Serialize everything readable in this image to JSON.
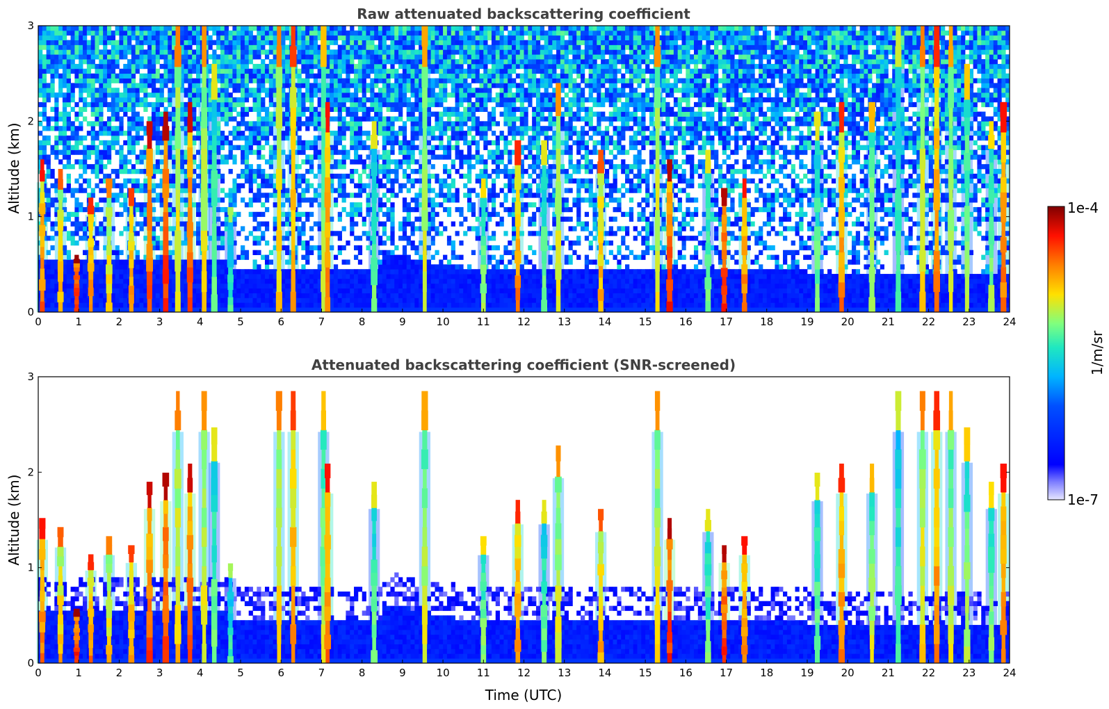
{
  "chart_data": {
    "type": "heatmap",
    "colormap": "jet",
    "colorbar": {
      "min_label": "1e-7",
      "max_label": "1e-4",
      "label": "1/m/sr",
      "range": [
        1e-07,
        0.0001
      ],
      "scale": "log",
      "low_color": "#e6e6ff",
      "high_color": "#7f0000"
    },
    "x_ticks": [
      "0",
      "1",
      "2",
      "3",
      "4",
      "5",
      "6",
      "7",
      "8",
      "9",
      "10",
      "11",
      "12",
      "13",
      "14",
      "15",
      "16",
      "17",
      "18",
      "19",
      "20",
      "21",
      "22",
      "23",
      "24"
    ],
    "y_ticks": [
      "0",
      "1",
      "2",
      "3"
    ],
    "xlabel": "Time (UTC)",
    "xlim": [
      0,
      24
    ],
    "ylim": [
      0,
      3
    ],
    "panels": [
      {
        "id": "raw",
        "title": "Raw attenuated backscattering coefficient",
        "ylabel": "Altitude (km)",
        "screened": false
      },
      {
        "id": "screened",
        "title": "Attenuated backscattering coefficient (SNR-screened)",
        "ylabel": "Altitude (km)",
        "screened": true
      }
    ],
    "plumes": [
      {
        "t": 0.1,
        "top": 1.6,
        "level": 0.82
      },
      {
        "t": 0.55,
        "top": 1.5,
        "level": 0.75
      },
      {
        "t": 0.95,
        "top": 0.6,
        "level": 0.9
      },
      {
        "t": 1.3,
        "top": 1.2,
        "level": 0.8
      },
      {
        "t": 1.75,
        "top": 1.4,
        "level": 0.72
      },
      {
        "t": 2.3,
        "top": 1.3,
        "level": 0.78
      },
      {
        "t": 2.75,
        "top": 2.0,
        "level": 0.86
      },
      {
        "t": 3.15,
        "top": 2.1,
        "level": 0.88
      },
      {
        "t": 3.45,
        "top": 3.0,
        "level": 0.72
      },
      {
        "t": 3.75,
        "top": 2.2,
        "level": 0.86
      },
      {
        "t": 4.1,
        "top": 3.0,
        "level": 0.7
      },
      {
        "t": 4.35,
        "top": 2.6,
        "level": 0.6
      },
      {
        "t": 4.75,
        "top": 1.1,
        "level": 0.55
      },
      {
        "t": 5.95,
        "top": 3.0,
        "level": 0.72
      },
      {
        "t": 6.3,
        "top": 3.0,
        "level": 0.78
      },
      {
        "t": 7.05,
        "top": 3.0,
        "level": 0.65
      },
      {
        "t": 7.15,
        "top": 2.2,
        "level": 0.82
      },
      {
        "t": 8.3,
        "top": 2.0,
        "level": 0.6
      },
      {
        "t": 9.55,
        "top": 3.0,
        "level": 0.68
      },
      {
        "t": 11.0,
        "top": 1.4,
        "level": 0.62
      },
      {
        "t": 11.85,
        "top": 1.8,
        "level": 0.8
      },
      {
        "t": 12.5,
        "top": 1.8,
        "level": 0.6
      },
      {
        "t": 12.85,
        "top": 2.4,
        "level": 0.7
      },
      {
        "t": 13.9,
        "top": 1.7,
        "level": 0.76
      },
      {
        "t": 15.3,
        "top": 3.0,
        "level": 0.7
      },
      {
        "t": 15.6,
        "top": 1.6,
        "level": 0.88
      },
      {
        "t": 16.55,
        "top": 1.7,
        "level": 0.6
      },
      {
        "t": 16.95,
        "top": 1.3,
        "level": 0.88
      },
      {
        "t": 17.45,
        "top": 1.4,
        "level": 0.82
      },
      {
        "t": 19.25,
        "top": 2.1,
        "level": 0.6
      },
      {
        "t": 19.85,
        "top": 2.2,
        "level": 0.8
      },
      {
        "t": 20.6,
        "top": 2.2,
        "level": 0.66
      },
      {
        "t": 21.25,
        "top": 3.0,
        "level": 0.58
      },
      {
        "t": 21.85,
        "top": 3.0,
        "level": 0.72
      },
      {
        "t": 22.2,
        "top": 3.0,
        "level": 0.8
      },
      {
        "t": 22.55,
        "top": 3.0,
        "level": 0.68
      },
      {
        "t": 22.95,
        "top": 2.6,
        "level": 0.64
      },
      {
        "t": 23.55,
        "top": 2.0,
        "level": 0.62
      },
      {
        "t": 23.85,
        "top": 2.2,
        "level": 0.82
      }
    ]
  }
}
